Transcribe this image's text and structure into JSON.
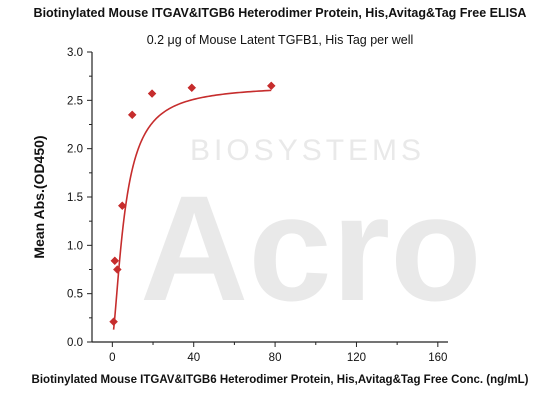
{
  "chart_data": {
    "type": "scatter",
    "title": "Biotinylated Mouse ITGAV&ITGB6 Heterodimer Protein, His,Avitag&Tag Free ELISA",
    "subtitle": "0.2 μg of Mouse Latent TGFB1, His Tag per well",
    "xlabel": "Biotinylated Mouse ITGAV&ITGB6 Heterodimer Protein, His,Avitag&Tag Free Conc. (ng/mL)",
    "ylabel": "Mean Abs.(OD450)",
    "xlim": [
      -10,
      165
    ],
    "ylim": [
      0,
      3.0
    ],
    "x_ticks": [
      0,
      40,
      80,
      120,
      160
    ],
    "y_ticks": [
      0.0,
      0.5,
      1.0,
      1.5,
      2.0,
      2.5,
      3.0
    ],
    "x_tick_labels": [
      "0",
      "40",
      "80",
      "120",
      "160"
    ],
    "y_tick_labels": [
      "0.0",
      "0.5",
      "1.0",
      "1.5",
      "2.0",
      "2.5",
      "3.0"
    ],
    "series": [
      {
        "points": [
          {
            "x": 0.61,
            "y": 0.21
          },
          {
            "x": 1.22,
            "y": 0.84
          },
          {
            "x": 2.44,
            "y": 0.75
          },
          {
            "x": 4.88,
            "y": 1.41
          },
          {
            "x": 9.77,
            "y": 2.35
          },
          {
            "x": 19.53,
            "y": 2.57
          },
          {
            "x": 39.06,
            "y": 2.63
          },
          {
            "x": 78.13,
            "y": 2.65
          }
        ],
        "fit": {
          "bottom": 0.05,
          "top": 2.66,
          "ec50": 6.2,
          "hill": 1.5
        }
      }
    ],
    "colors": {
      "series": "#c62d2d",
      "axis": "#222222",
      "watermark": "#e9e9e9"
    },
    "watermark": {
      "brand": "Acro",
      "sub": "BIOSYSTEMS"
    },
    "grid": false,
    "legend": "none"
  }
}
